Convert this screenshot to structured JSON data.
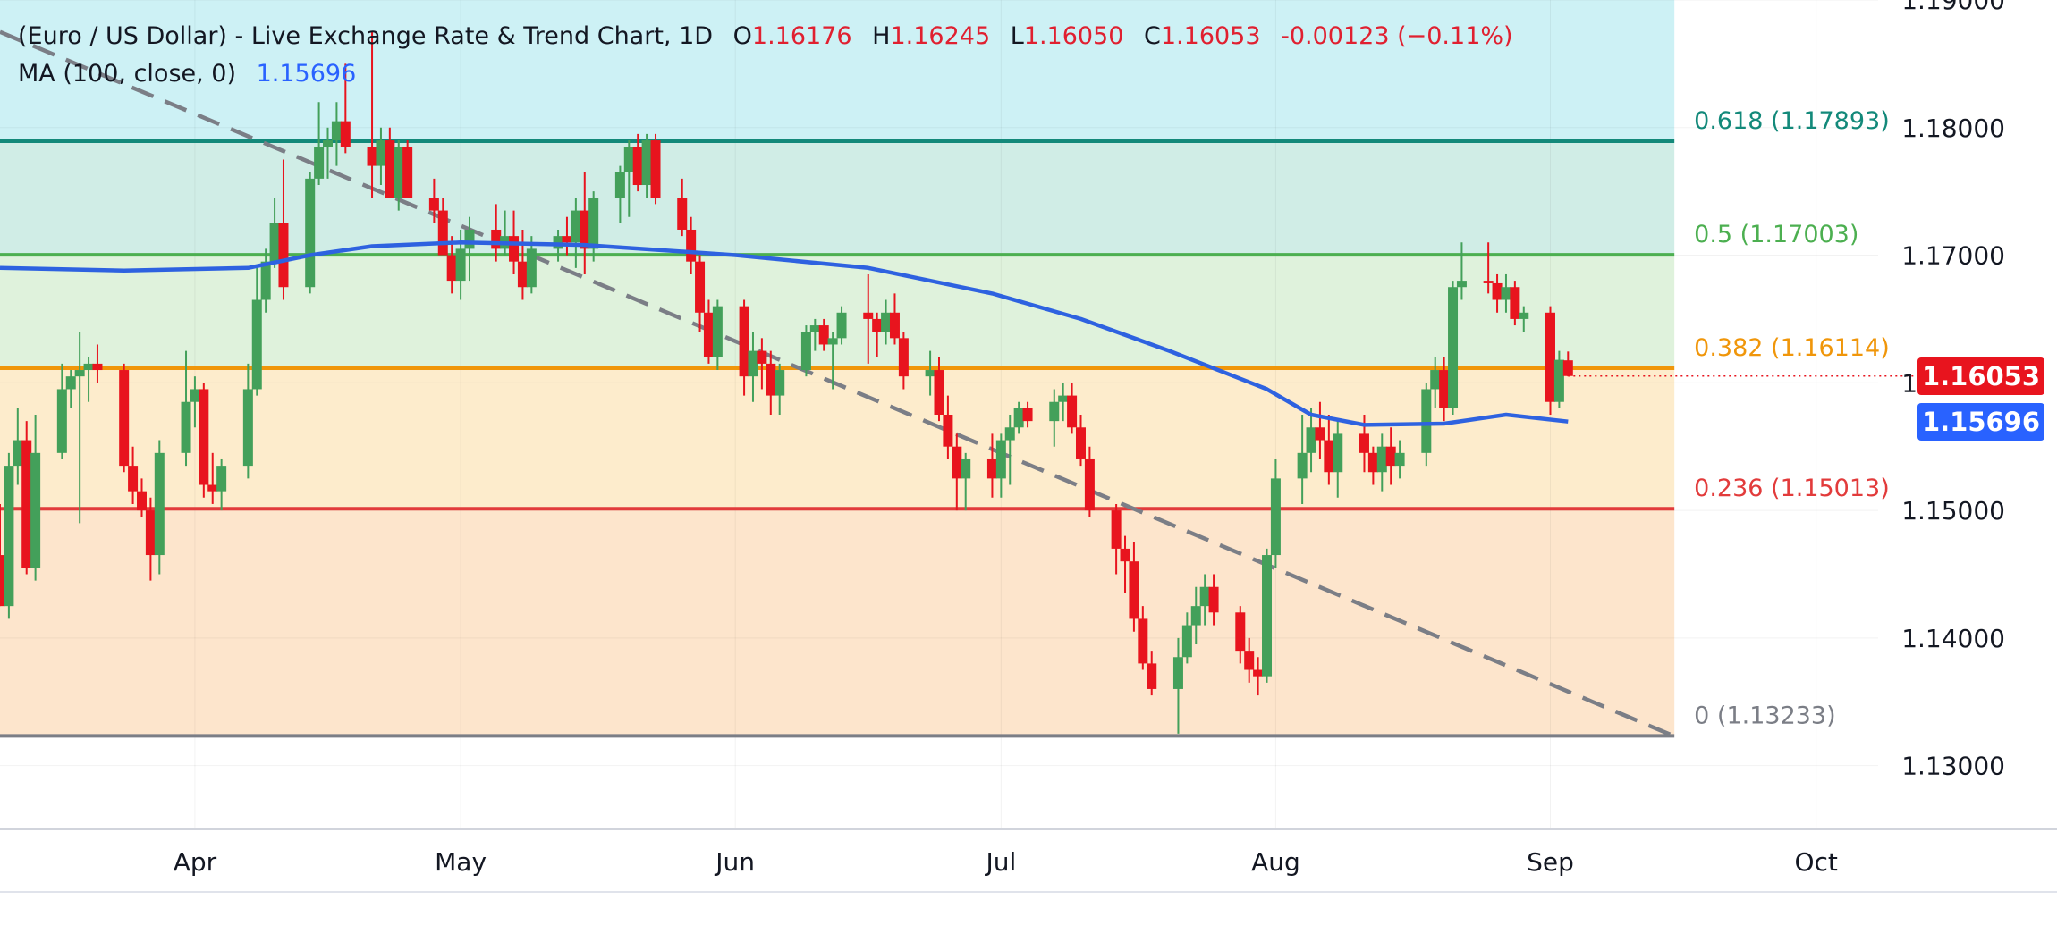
{
  "legend": {
    "symbol": "(Euro / US Dollar) - Live Exchange Rate & Trend Chart, 1D",
    "open_key": "O",
    "open": "1.16176",
    "high_key": "H",
    "high": "1.16245",
    "low_key": "L",
    "low": "1.16050",
    "close_key": "C",
    "close": "1.16053",
    "change": "-0.00123 (−0.11%)",
    "ma_label": "MA (100, close, 0)",
    "ma_value": "1.15696"
  },
  "badges": {
    "last_price": "1.16053",
    "ma_price": "1.15696",
    "last_color": "#e8141e",
    "ma_color": "#2962ff"
  },
  "colors": {
    "up": "#43a05a",
    "down": "#e8141e",
    "ma": "#2e62e0",
    "trendline": "#7b7e86"
  },
  "chart_data": {
    "type": "candlestick",
    "timeframe": "1D",
    "y_range": [
      1.125,
      1.19
    ],
    "y_ticks": [
      "1.19000",
      "1.18000",
      "1.17000",
      "1.16000",
      "1.15000",
      "1.14000",
      "1.13000"
    ],
    "y_tick_values": [
      1.19,
      1.18,
      1.17,
      1.16,
      1.15,
      1.14,
      1.13
    ],
    "x_range": [
      "2025-03-10",
      "2025-10-08"
    ],
    "x_ticks": [
      {
        "label": "Apr",
        "date": "2025-04-01"
      },
      {
        "label": "May",
        "date": "2025-05-01"
      },
      {
        "label": "Jun",
        "date": "2025-06-01"
      },
      {
        "label": "Jul",
        "date": "2025-07-01"
      },
      {
        "label": "Aug",
        "date": "2025-08-01"
      },
      {
        "label": "Sep",
        "date": "2025-09-01"
      },
      {
        "label": "Oct",
        "date": "2025-10-01"
      }
    ],
    "fib_end_date": "2025-09-15",
    "fib_levels": [
      {
        "ratio": "0.618",
        "price": 1.17893,
        "label": "0.618 (1.17893)",
        "color": "#13897a",
        "zone_color": "#d0ede6"
      },
      {
        "ratio": "0.5",
        "price": 1.17003,
        "label": "0.5 (1.17003)",
        "color": "#4caf50",
        "zone_color": "#dff2dc"
      },
      {
        "ratio": "0.382",
        "price": 1.16114,
        "label": "0.382 (1.16114)",
        "color": "#f0960a",
        "zone_color": "#fdeccc"
      },
      {
        "ratio": "0.236",
        "price": 1.15013,
        "label": "0.236 (1.15013)",
        "color": "#e23b3b",
        "zone_color": "#fde5cc"
      },
      {
        "ratio": "0",
        "price": 1.13233,
        "label": "0 (1.13233)",
        "color": "#7b7e86",
        "zone_color": "#fcd7db"
      }
    ],
    "top_zone_color": "#cdf1f5",
    "trendline": {
      "start": [
        "2025-03-10",
        1.1875
      ],
      "end": [
        "2025-09-15",
        1.1323
      ]
    },
    "last_price": 1.16053,
    "ma_last": 1.15696,
    "candles": [
      {
        "d": "2025-03-10",
        "o": 1.1465,
        "h": 1.1505,
        "l": 1.1425,
        "c": 1.1425
      },
      {
        "d": "2025-03-11",
        "o": 1.1425,
        "h": 1.1545,
        "l": 1.1415,
        "c": 1.1535
      },
      {
        "d": "2025-03-12",
        "o": 1.1535,
        "h": 1.158,
        "l": 1.152,
        "c": 1.1555
      },
      {
        "d": "2025-03-13",
        "o": 1.1555,
        "h": 1.157,
        "l": 1.145,
        "c": 1.1455
      },
      {
        "d": "2025-03-14",
        "o": 1.1455,
        "h": 1.1575,
        "l": 1.1445,
        "c": 1.1545
      },
      {
        "d": "2025-03-17",
        "o": 1.1545,
        "h": 1.1615,
        "l": 1.154,
        "c": 1.1595
      },
      {
        "d": "2025-03-18",
        "o": 1.1595,
        "h": 1.161,
        "l": 1.158,
        "c": 1.1605
      },
      {
        "d": "2025-03-19",
        "o": 1.1605,
        "h": 1.164,
        "l": 1.149,
        "c": 1.161
      },
      {
        "d": "2025-03-20",
        "o": 1.161,
        "h": 1.162,
        "l": 1.1585,
        "c": 1.1615
      },
      {
        "d": "2025-03-21",
        "o": 1.1615,
        "h": 1.163,
        "l": 1.16,
        "c": 1.161
      },
      {
        "d": "2025-03-24",
        "o": 1.161,
        "h": 1.1615,
        "l": 1.153,
        "c": 1.1535
      },
      {
        "d": "2025-03-25",
        "o": 1.1535,
        "h": 1.155,
        "l": 1.1505,
        "c": 1.1515
      },
      {
        "d": "2025-03-26",
        "o": 1.1515,
        "h": 1.1525,
        "l": 1.1495,
        "c": 1.15
      },
      {
        "d": "2025-03-27",
        "o": 1.15,
        "h": 1.151,
        "l": 1.1445,
        "c": 1.1465
      },
      {
        "d": "2025-03-28",
        "o": 1.1465,
        "h": 1.1555,
        "l": 1.145,
        "c": 1.1545
      },
      {
        "d": "2025-03-31",
        "o": 1.1545,
        "h": 1.1625,
        "l": 1.1535,
        "c": 1.1585
      },
      {
        "d": "2025-04-01",
        "o": 1.1585,
        "h": 1.1605,
        "l": 1.1565,
        "c": 1.1595
      },
      {
        "d": "2025-04-02",
        "o": 1.1595,
        "h": 1.16,
        "l": 1.151,
        "c": 1.152
      },
      {
        "d": "2025-04-03",
        "o": 1.152,
        "h": 1.1545,
        "l": 1.1505,
        "c": 1.1515
      },
      {
        "d": "2025-04-04",
        "o": 1.1515,
        "h": 1.154,
        "l": 1.15,
        "c": 1.1535
      },
      {
        "d": "2025-04-07",
        "o": 1.1535,
        "h": 1.1615,
        "l": 1.1525,
        "c": 1.1595
      },
      {
        "d": "2025-04-08",
        "o": 1.1595,
        "h": 1.169,
        "l": 1.159,
        "c": 1.1665
      },
      {
        "d": "2025-04-09",
        "o": 1.1665,
        "h": 1.1705,
        "l": 1.1655,
        "c": 1.1695
      },
      {
        "d": "2025-04-10",
        "o": 1.1695,
        "h": 1.1745,
        "l": 1.169,
        "c": 1.1725
      },
      {
        "d": "2025-04-11",
        "o": 1.1725,
        "h": 1.1775,
        "l": 1.1665,
        "c": 1.1675
      },
      {
        "d": "2025-04-14",
        "o": 1.1675,
        "h": 1.1765,
        "l": 1.167,
        "c": 1.176
      },
      {
        "d": "2025-04-15",
        "o": 1.176,
        "h": 1.182,
        "l": 1.1755,
        "c": 1.1785
      },
      {
        "d": "2025-04-16",
        "o": 1.1785,
        "h": 1.18,
        "l": 1.176,
        "c": 1.179
      },
      {
        "d": "2025-04-17",
        "o": 1.179,
        "h": 1.182,
        "l": 1.177,
        "c": 1.1805
      },
      {
        "d": "2025-04-18",
        "o": 1.1805,
        "h": 1.185,
        "l": 1.178,
        "c": 1.1785
      },
      {
        "d": "2025-04-21",
        "o": 1.1785,
        "h": 1.1875,
        "l": 1.1745,
        "c": 1.177
      },
      {
        "d": "2025-04-22",
        "o": 1.177,
        "h": 1.18,
        "l": 1.1755,
        "c": 1.179
      },
      {
        "d": "2025-04-23",
        "o": 1.179,
        "h": 1.18,
        "l": 1.1745,
        "c": 1.1745
      },
      {
        "d": "2025-04-24",
        "o": 1.1745,
        "h": 1.179,
        "l": 1.1735,
        "c": 1.1785
      },
      {
        "d": "2025-04-25",
        "o": 1.1785,
        "h": 1.179,
        "l": 1.1745,
        "c": 1.1745
      },
      {
        "d": "2025-04-28",
        "o": 1.1745,
        "h": 1.176,
        "l": 1.1725,
        "c": 1.1735
      },
      {
        "d": "2025-04-29",
        "o": 1.1735,
        "h": 1.1745,
        "l": 1.17,
        "c": 1.17
      },
      {
        "d": "2025-04-30",
        "o": 1.17,
        "h": 1.1715,
        "l": 1.167,
        "c": 1.168
      },
      {
        "d": "2025-05-01",
        "o": 1.168,
        "h": 1.172,
        "l": 1.1665,
        "c": 1.1705
      },
      {
        "d": "2025-05-02",
        "o": 1.1705,
        "h": 1.173,
        "l": 1.168,
        "c": 1.172
      },
      {
        "d": "2025-05-05",
        "o": 1.172,
        "h": 1.174,
        "l": 1.1695,
        "c": 1.1705
      },
      {
        "d": "2025-05-06",
        "o": 1.1705,
        "h": 1.1735,
        "l": 1.17,
        "c": 1.1715
      },
      {
        "d": "2025-05-07",
        "o": 1.1715,
        "h": 1.1735,
        "l": 1.1685,
        "c": 1.1695
      },
      {
        "d": "2025-05-08",
        "o": 1.1695,
        "h": 1.172,
        "l": 1.1665,
        "c": 1.1675
      },
      {
        "d": "2025-05-09",
        "o": 1.1675,
        "h": 1.1715,
        "l": 1.167,
        "c": 1.1705
      },
      {
        "d": "2025-05-12",
        "o": 1.1705,
        "h": 1.172,
        "l": 1.1695,
        "c": 1.1715
      },
      {
        "d": "2025-05-13",
        "o": 1.1715,
        "h": 1.173,
        "l": 1.17,
        "c": 1.171
      },
      {
        "d": "2025-05-14",
        "o": 1.171,
        "h": 1.1745,
        "l": 1.169,
        "c": 1.1735
      },
      {
        "d": "2025-05-15",
        "o": 1.1735,
        "h": 1.1765,
        "l": 1.1685,
        "c": 1.1705
      },
      {
        "d": "2025-05-16",
        "o": 1.1705,
        "h": 1.175,
        "l": 1.1695,
        "c": 1.1745
      },
      {
        "d": "2025-05-19",
        "o": 1.1745,
        "h": 1.177,
        "l": 1.1725,
        "c": 1.1765
      },
      {
        "d": "2025-05-20",
        "o": 1.1765,
        "h": 1.179,
        "l": 1.173,
        "c": 1.1785
      },
      {
        "d": "2025-05-21",
        "o": 1.1785,
        "h": 1.1795,
        "l": 1.175,
        "c": 1.1755
      },
      {
        "d": "2025-05-22",
        "o": 1.1755,
        "h": 1.1795,
        "l": 1.1745,
        "c": 1.179
      },
      {
        "d": "2025-05-23",
        "o": 1.179,
        "h": 1.1795,
        "l": 1.174,
        "c": 1.1745
      },
      {
        "d": "2025-05-26",
        "o": 1.1745,
        "h": 1.176,
        "l": 1.1715,
        "c": 1.172
      },
      {
        "d": "2025-05-27",
        "o": 1.172,
        "h": 1.173,
        "l": 1.1685,
        "c": 1.1695
      },
      {
        "d": "2025-05-28",
        "o": 1.1695,
        "h": 1.17,
        "l": 1.164,
        "c": 1.1655
      },
      {
        "d": "2025-05-29",
        "o": 1.1655,
        "h": 1.1665,
        "l": 1.1615,
        "c": 1.162
      },
      {
        "d": "2025-05-30",
        "o": 1.162,
        "h": 1.1665,
        "l": 1.161,
        "c": 1.166
      },
      {
        "d": "2025-06-02",
        "o": 1.166,
        "h": 1.1665,
        "l": 1.159,
        "c": 1.1605
      },
      {
        "d": "2025-06-03",
        "o": 1.1605,
        "h": 1.164,
        "l": 1.1585,
        "c": 1.1625
      },
      {
        "d": "2025-06-04",
        "o": 1.1625,
        "h": 1.1635,
        "l": 1.1595,
        "c": 1.1615
      },
      {
        "d": "2025-06-05",
        "o": 1.1615,
        "h": 1.1625,
        "l": 1.1575,
        "c": 1.159
      },
      {
        "d": "2025-06-06",
        "o": 1.159,
        "h": 1.1615,
        "l": 1.1575,
        "c": 1.161
      },
      {
        "d": "2025-06-09",
        "o": 1.161,
        "h": 1.1645,
        "l": 1.1605,
        "c": 1.164
      },
      {
        "d": "2025-06-10",
        "o": 1.164,
        "h": 1.165,
        "l": 1.1625,
        "c": 1.1645
      },
      {
        "d": "2025-06-11",
        "o": 1.1645,
        "h": 1.165,
        "l": 1.1625,
        "c": 1.163
      },
      {
        "d": "2025-06-12",
        "o": 1.163,
        "h": 1.164,
        "l": 1.1595,
        "c": 1.1635
      },
      {
        "d": "2025-06-13",
        "o": 1.1635,
        "h": 1.166,
        "l": 1.163,
        "c": 1.1655
      },
      {
        "d": "2025-06-16",
        "o": 1.1655,
        "h": 1.1685,
        "l": 1.1615,
        "c": 1.165
      },
      {
        "d": "2025-06-17",
        "o": 1.165,
        "h": 1.1655,
        "l": 1.162,
        "c": 1.164
      },
      {
        "d": "2025-06-18",
        "o": 1.164,
        "h": 1.1665,
        "l": 1.163,
        "c": 1.1655
      },
      {
        "d": "2025-06-19",
        "o": 1.1655,
        "h": 1.167,
        "l": 1.163,
        "c": 1.1635
      },
      {
        "d": "2025-06-20",
        "o": 1.1635,
        "h": 1.164,
        "l": 1.1595,
        "c": 1.1605
      },
      {
        "d": "2025-06-23",
        "o": 1.1605,
        "h": 1.1625,
        "l": 1.159,
        "c": 1.161
      },
      {
        "d": "2025-06-24",
        "o": 1.161,
        "h": 1.162,
        "l": 1.157,
        "c": 1.1575
      },
      {
        "d": "2025-06-25",
        "o": 1.1575,
        "h": 1.159,
        "l": 1.154,
        "c": 1.155
      },
      {
        "d": "2025-06-26",
        "o": 1.155,
        "h": 1.156,
        "l": 1.15,
        "c": 1.1525
      },
      {
        "d": "2025-06-27",
        "o": 1.1525,
        "h": 1.1545,
        "l": 1.15,
        "c": 1.154
      },
      {
        "d": "2025-06-30",
        "o": 1.154,
        "h": 1.156,
        "l": 1.151,
        "c": 1.1525
      },
      {
        "d": "2025-07-01",
        "o": 1.1525,
        "h": 1.156,
        "l": 1.151,
        "c": 1.1555
      },
      {
        "d": "2025-07-02",
        "o": 1.1555,
        "h": 1.1575,
        "l": 1.152,
        "c": 1.1565
      },
      {
        "d": "2025-07-03",
        "o": 1.1565,
        "h": 1.1585,
        "l": 1.156,
        "c": 1.158
      },
      {
        "d": "2025-07-04",
        "o": 1.158,
        "h": 1.1585,
        "l": 1.1565,
        "c": 1.157
      },
      {
        "d": "2025-07-07",
        "o": 1.157,
        "h": 1.1595,
        "l": 1.155,
        "c": 1.1585
      },
      {
        "d": "2025-07-08",
        "o": 1.1585,
        "h": 1.16,
        "l": 1.157,
        "c": 1.159
      },
      {
        "d": "2025-07-09",
        "o": 1.159,
        "h": 1.16,
        "l": 1.156,
        "c": 1.1565
      },
      {
        "d": "2025-07-10",
        "o": 1.1565,
        "h": 1.1575,
        "l": 1.1535,
        "c": 1.154
      },
      {
        "d": "2025-07-11",
        "o": 1.154,
        "h": 1.155,
        "l": 1.1495,
        "c": 1.15
      },
      {
        "d": "2025-07-14",
        "o": 1.15,
        "h": 1.1505,
        "l": 1.145,
        "c": 1.147
      },
      {
        "d": "2025-07-15",
        "o": 1.147,
        "h": 1.148,
        "l": 1.1435,
        "c": 1.146
      },
      {
        "d": "2025-07-16",
        "o": 1.146,
        "h": 1.1475,
        "l": 1.1405,
        "c": 1.1415
      },
      {
        "d": "2025-07-17",
        "o": 1.1415,
        "h": 1.1425,
        "l": 1.1375,
        "c": 1.138
      },
      {
        "d": "2025-07-18",
        "o": 1.138,
        "h": 1.139,
        "l": 1.1355,
        "c": 1.136
      },
      {
        "d": "2025-07-21",
        "o": 1.136,
        "h": 1.14,
        "l": 1.1325,
        "c": 1.1385
      },
      {
        "d": "2025-07-22",
        "o": 1.1385,
        "h": 1.142,
        "l": 1.138,
        "c": 1.141
      },
      {
        "d": "2025-07-23",
        "o": 1.141,
        "h": 1.144,
        "l": 1.1395,
        "c": 1.1425
      },
      {
        "d": "2025-07-24",
        "o": 1.1425,
        "h": 1.145,
        "l": 1.141,
        "c": 1.144
      },
      {
        "d": "2025-07-25",
        "o": 1.144,
        "h": 1.145,
        "l": 1.141,
        "c": 1.142
      },
      {
        "d": "2025-07-28",
        "o": 1.142,
        "h": 1.1425,
        "l": 1.138,
        "c": 1.139
      },
      {
        "d": "2025-07-29",
        "o": 1.139,
        "h": 1.14,
        "l": 1.1365,
        "c": 1.1375
      },
      {
        "d": "2025-07-30",
        "o": 1.1375,
        "h": 1.1385,
        "l": 1.1355,
        "c": 1.137
      },
      {
        "d": "2025-07-31",
        "o": 1.137,
        "h": 1.147,
        "l": 1.1365,
        "c": 1.1465
      },
      {
        "d": "2025-08-01",
        "o": 1.1465,
        "h": 1.154,
        "l": 1.1455,
        "c": 1.1525
      },
      {
        "d": "2025-08-04",
        "o": 1.1525,
        "h": 1.1575,
        "l": 1.1505,
        "c": 1.1545
      },
      {
        "d": "2025-08-05",
        "o": 1.1545,
        "h": 1.158,
        "l": 1.153,
        "c": 1.1565
      },
      {
        "d": "2025-08-06",
        "o": 1.1565,
        "h": 1.1585,
        "l": 1.154,
        "c": 1.1555
      },
      {
        "d": "2025-08-07",
        "o": 1.1555,
        "h": 1.1575,
        "l": 1.152,
        "c": 1.153
      },
      {
        "d": "2025-08-08",
        "o": 1.153,
        "h": 1.157,
        "l": 1.151,
        "c": 1.156
      },
      {
        "d": "2025-08-11",
        "o": 1.156,
        "h": 1.1575,
        "l": 1.153,
        "c": 1.1545
      },
      {
        "d": "2025-08-12",
        "o": 1.1545,
        "h": 1.155,
        "l": 1.152,
        "c": 1.153
      },
      {
        "d": "2025-08-13",
        "o": 1.153,
        "h": 1.156,
        "l": 1.1515,
        "c": 1.155
      },
      {
        "d": "2025-08-14",
        "o": 1.155,
        "h": 1.1565,
        "l": 1.152,
        "c": 1.1535
      },
      {
        "d": "2025-08-15",
        "o": 1.1535,
        "h": 1.1555,
        "l": 1.1525,
        "c": 1.1545
      },
      {
        "d": "2025-08-18",
        "o": 1.1545,
        "h": 1.16,
        "l": 1.1535,
        "c": 1.1595
      },
      {
        "d": "2025-08-19",
        "o": 1.1595,
        "h": 1.162,
        "l": 1.158,
        "c": 1.161
      },
      {
        "d": "2025-08-20",
        "o": 1.161,
        "h": 1.162,
        "l": 1.157,
        "c": 1.158
      },
      {
        "d": "2025-08-21",
        "o": 1.158,
        "h": 1.168,
        "l": 1.1575,
        "c": 1.1675
      },
      {
        "d": "2025-08-22",
        "o": 1.1675,
        "h": 1.171,
        "l": 1.1665,
        "c": 1.168
      },
      {
        "d": "2025-08-25",
        "o": 1.168,
        "h": 1.171,
        "l": 1.167,
        "c": 1.1678
      },
      {
        "d": "2025-08-26",
        "o": 1.1678,
        "h": 1.1685,
        "l": 1.1655,
        "c": 1.1665
      },
      {
        "d": "2025-08-27",
        "o": 1.1665,
        "h": 1.1685,
        "l": 1.1655,
        "c": 1.1675
      },
      {
        "d": "2025-08-28",
        "o": 1.1675,
        "h": 1.168,
        "l": 1.1645,
        "c": 1.165
      },
      {
        "d": "2025-08-29",
        "o": 1.165,
        "h": 1.166,
        "l": 1.164,
        "c": 1.1655
      },
      {
        "d": "2025-09-01",
        "o": 1.1655,
        "h": 1.166,
        "l": 1.1575,
        "c": 1.1585
      },
      {
        "d": "2025-09-02",
        "o": 1.1585,
        "h": 1.1625,
        "l": 1.158,
        "c": 1.1618
      },
      {
        "d": "2025-09-03",
        "o": 1.16176,
        "h": 1.16245,
        "l": 1.1605,
        "c": 1.16053
      }
    ],
    "ma_100": [
      {
        "d": "2025-03-10",
        "v": 1.169
      },
      {
        "d": "2025-03-24",
        "v": 1.1688
      },
      {
        "d": "2025-04-07",
        "v": 1.169
      },
      {
        "d": "2025-04-14",
        "v": 1.17
      },
      {
        "d": "2025-04-21",
        "v": 1.1707
      },
      {
        "d": "2025-05-01",
        "v": 1.171
      },
      {
        "d": "2025-05-15",
        "v": 1.1708
      },
      {
        "d": "2025-06-01",
        "v": 1.17
      },
      {
        "d": "2025-06-16",
        "v": 1.169
      },
      {
        "d": "2025-06-30",
        "v": 1.167
      },
      {
        "d": "2025-07-10",
        "v": 1.165
      },
      {
        "d": "2025-07-20",
        "v": 1.1625
      },
      {
        "d": "2025-07-31",
        "v": 1.1595
      },
      {
        "d": "2025-08-05",
        "v": 1.1575
      },
      {
        "d": "2025-08-11",
        "v": 1.1567
      },
      {
        "d": "2025-08-20",
        "v": 1.1568
      },
      {
        "d": "2025-08-27",
        "v": 1.1575
      },
      {
        "d": "2025-09-03",
        "v": 1.15696
      }
    ]
  }
}
